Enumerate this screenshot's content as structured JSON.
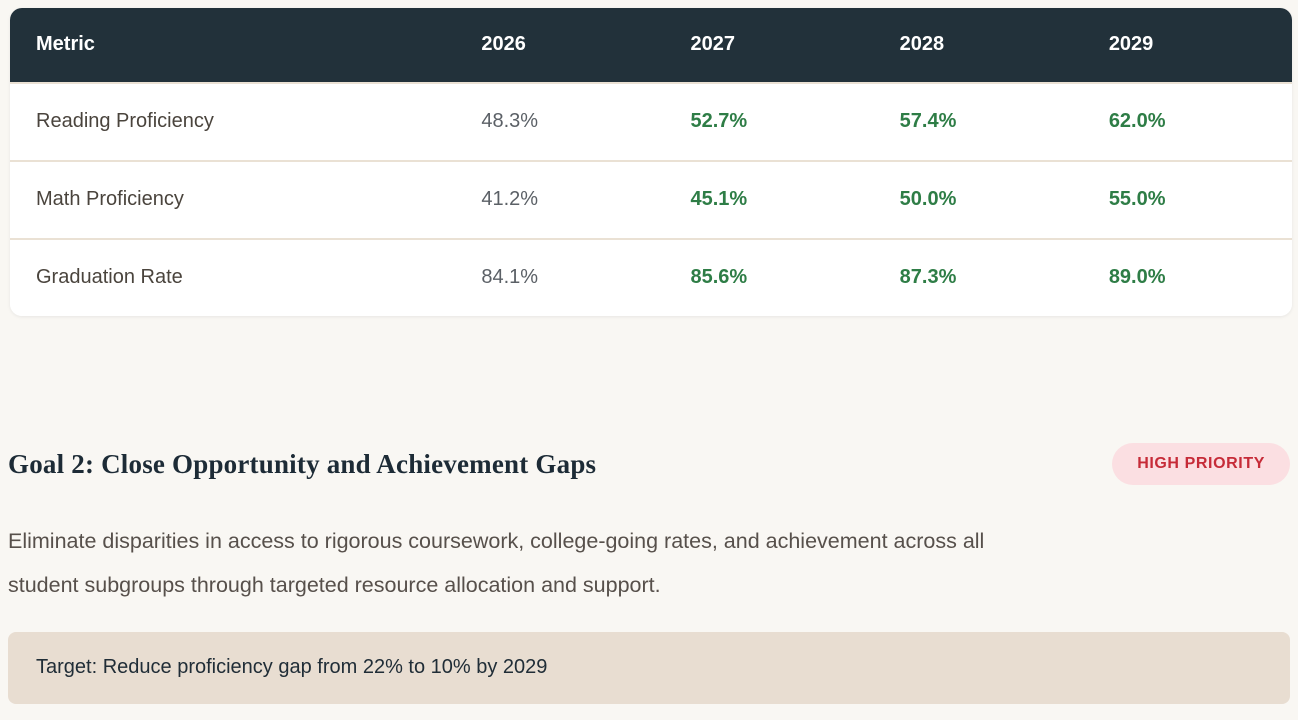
{
  "colors": {
    "page_bg": "#f9f7f3",
    "table_header_bg": "#22313a",
    "table_header_text": "#ffffff",
    "row_divider": "#eae1d4",
    "metric_text": "#4a443d",
    "baseline_value_text": "#5b6066",
    "growth_value_text": "#2e7d46",
    "heading_text": "#1d2b36",
    "paragraph_text": "#57504b",
    "badge_bg": "#fbdfe2",
    "badge_text": "#c62b38",
    "target_box_bg": "#e8ddd1",
    "target_text": "#202d37"
  },
  "table": {
    "headers": [
      "Metric",
      "2026",
      "2027",
      "2028",
      "2029"
    ],
    "rows": [
      {
        "metric": "Reading Proficiency",
        "values": [
          "48.3%",
          "52.7%",
          "57.4%",
          "62.0%"
        ]
      },
      {
        "metric": "Math Proficiency",
        "values": [
          "41.2%",
          "45.1%",
          "50.0%",
          "55.0%"
        ]
      },
      {
        "metric": "Graduation Rate",
        "values": [
          "84.1%",
          "85.6%",
          "87.3%",
          "89.0%"
        ]
      }
    ]
  },
  "goal": {
    "title": "Goal 2: Close Opportunity and Achievement Gaps",
    "priority_badge": "HIGH PRIORITY",
    "description": "Eliminate disparities in access to rigorous coursework, college-going rates, and achievement across all\nstudent subgroups through targeted resource allocation and support.",
    "target": "Target: Reduce proficiency gap from 22% to 10% by 2029"
  }
}
